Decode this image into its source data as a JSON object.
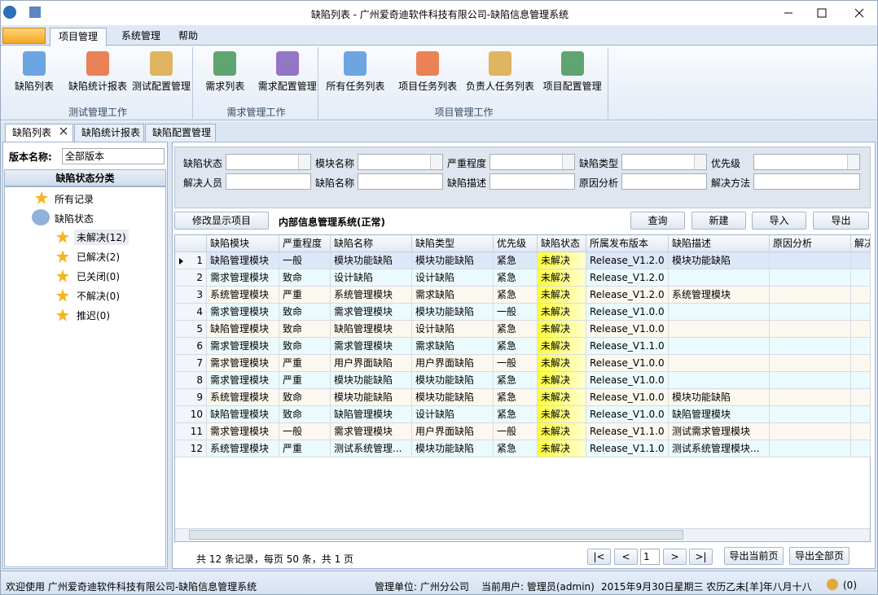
{
  "window": {
    "title": "缺陷列表 - 广州爱奇迪软件科技有限公司-缺陷信息管理系统"
  },
  "ribbon": {
    "tabs": [
      "项目管理",
      "系统管理",
      "帮助"
    ],
    "groups": [
      {
        "label": "测试管理工作",
        "items": [
          "缺陷列表",
          "缺陷统计报表",
          "测试配置管理"
        ]
      },
      {
        "label": "需求管理工作",
        "items": [
          "需求列表",
          "需求配置管理"
        ]
      },
      {
        "label": "项目管理工作",
        "items": [
          "所有任务列表",
          "项目任务列表",
          "负责人任务列表",
          "项目配置管理"
        ]
      }
    ]
  },
  "doc_tabs": [
    "缺陷列表",
    "缺陷统计报表",
    "缺陷配置管理"
  ],
  "sidebar": {
    "version_label": "版本名称:",
    "version_value": "全部版本",
    "tree_title": "缺陷状态分类",
    "all": "所有记录",
    "status": "缺陷状态",
    "children": [
      "未解决(12)",
      "已解决(2)",
      "已关闭(0)",
      "不解决(0)",
      "推迟(0)"
    ]
  },
  "filters": {
    "rows": [
      [
        "缺陷状态",
        "模块名称",
        "严重程度",
        "缺陷类型",
        "优先级"
      ],
      [
        "解决人员",
        "缺陷名称",
        "缺陷描述",
        "原因分析",
        "解决方法"
      ]
    ]
  },
  "toolbar": {
    "edit_button": "修改显示项目",
    "system_title": "内部信息管理系统(正常)",
    "buttons": [
      "查询",
      "新建",
      "导入",
      "导出"
    ]
  },
  "table": {
    "columns": [
      "缺陷模块",
      "严重程度",
      "缺陷名称",
      "缺陷类型",
      "优先级",
      "缺陷状态",
      "所属发布版本",
      "缺陷描述",
      "原因分析",
      "解决"
    ],
    "rows": [
      [
        "1",
        "缺陷管理模块",
        "一般",
        "模块功能缺陷",
        "模块功能缺陷",
        "紧急",
        "未解决",
        "Release_V1.2.0",
        "模块功能缺陷",
        null
      ],
      [
        "2",
        "需求管理模块",
        "致命",
        "设计缺陷",
        "设计缺陷",
        "紧急",
        "未解决",
        "Release_V1.2.0",
        null,
        null
      ],
      [
        "3",
        "系统管理模块",
        "严重",
        "系统管理模块",
        "需求缺陷",
        "紧急",
        "未解决",
        "Release_V1.2.0",
        "系统管理模块",
        null
      ],
      [
        "4",
        "需求管理模块",
        "致命",
        "需求管理模块",
        "模块功能缺陷",
        "一般",
        "未解决",
        "Release_V1.0.0",
        null,
        null
      ],
      [
        "5",
        "缺陷管理模块",
        "致命",
        "缺陷管理模块",
        "设计缺陷",
        "紧急",
        "未解决",
        "Release_V1.0.0",
        null,
        null
      ],
      [
        "6",
        "需求管理模块",
        "致命",
        "需求管理模块",
        "需求缺陷",
        "紧急",
        "未解决",
        "Release_V1.1.0",
        null,
        null
      ],
      [
        "7",
        "需求管理模块",
        "严重",
        "用户界面缺陷",
        "用户界面缺陷",
        "一般",
        "未解决",
        "Release_V1.0.0",
        null,
        null
      ],
      [
        "8",
        "需求管理模块",
        "严重",
        "模块功能缺陷",
        "模块功能缺陷",
        "紧急",
        "未解决",
        "Release_V1.0.0",
        null,
        null
      ],
      [
        "9",
        "系统管理模块",
        "致命",
        "模块功能缺陷",
        "模块功能缺陷",
        "紧急",
        "未解决",
        "Release_V1.0.0",
        "模块功能缺陷",
        null
      ],
      [
        "10",
        "缺陷管理模块",
        "致命",
        "缺陷管理模块",
        "设计缺陷",
        "紧急",
        "未解决",
        "Release_V1.0.0",
        "缺陷管理模块",
        null
      ],
      [
        "11",
        "需求管理模块",
        "一般",
        "需求管理模块",
        "用户界面缺陷",
        "一般",
        "未解决",
        "Release_V1.1.0",
        "测试需求管理模块",
        null
      ],
      [
        "12",
        "系统管理模块",
        "严重",
        "测试系统管理...",
        "模块功能缺陷",
        "紧急",
        "未解决",
        "Release_V1.1.0",
        "测试系统管理模块...",
        null
      ]
    ]
  },
  "pager": {
    "summary": "共 12 条记录，每页 50 条，共 1 页",
    "nav": [
      "|<",
      "<",
      ">",
      ">|"
    ],
    "page": "1",
    "buttons": [
      "导出当前页",
      "导出全部页"
    ]
  },
  "status_bar": {
    "welcome": "欢迎使用 广州爱奇迪软件科技有限公司-缺陷信息管理系统",
    "unit": "管理单位: 广州分公司",
    "user": "当前用户: 管理员(admin)",
    "date": "2015年9月30日星期三 农历乙未[羊]年八月十八",
    "messages": "(0)"
  }
}
